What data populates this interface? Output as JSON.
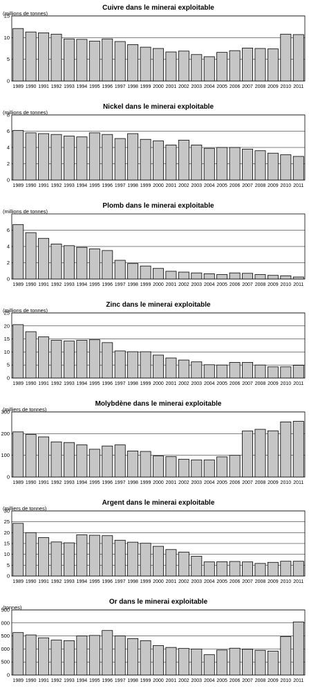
{
  "figure": {
    "years": [
      "1989",
      "1990",
      "1991",
      "1992",
      "1993",
      "1994",
      "1995",
      "1996",
      "1997",
      "1998",
      "1999",
      "2000",
      "2001",
      "2002",
      "2003",
      "2004",
      "2005",
      "2006",
      "2007",
      "2008",
      "2009",
      "2010",
      "2011"
    ]
  },
  "chart_data": [
    {
      "type": "bar",
      "title": "Cuivre dans le minerai exploitable",
      "unit": "(millions de tonnes)",
      "categories": [
        "1989",
        "1990",
        "1991",
        "1992",
        "1993",
        "1994",
        "1995",
        "1996",
        "1997",
        "1998",
        "1999",
        "2000",
        "2001",
        "2002",
        "2003",
        "2004",
        "2005",
        "2006",
        "2007",
        "2008",
        "2009",
        "2010",
        "2011"
      ],
      "values": [
        12.1,
        11.3,
        11.1,
        10.8,
        9.7,
        9.6,
        9.2,
        9.7,
        9.1,
        8.4,
        7.8,
        7.5,
        6.7,
        6.9,
        6.1,
        5.6,
        6.6,
        7.0,
        7.6,
        7.5,
        7.4,
        10.8,
        10.7
      ],
      "ylim": [
        0,
        15
      ],
      "yticks": [
        0,
        5,
        10,
        15
      ],
      "ytick_labels": [
        "0",
        "5",
        "10",
        "15"
      ],
      "grid": true,
      "legend": "none"
    },
    {
      "type": "bar",
      "title": "Nickel dans le minerai exploitable",
      "unit": "(millions de tonnes)",
      "categories": [
        "1989",
        "1990",
        "1991",
        "1992",
        "1993",
        "1994",
        "1995",
        "1996",
        "1997",
        "1998",
        "1999",
        "2000",
        "2001",
        "2002",
        "2003",
        "2004",
        "2005",
        "2006",
        "2007",
        "2008",
        "2009",
        "2010",
        "2011"
      ],
      "values": [
        6.1,
        5.8,
        5.7,
        5.6,
        5.4,
        5.3,
        5.8,
        5.6,
        5.1,
        5.7,
        5.0,
        4.8,
        4.3,
        4.9,
        4.3,
        3.9,
        4.0,
        4.0,
        3.8,
        3.6,
        3.3,
        3.1,
        2.9
      ],
      "ylim": [
        0,
        8
      ],
      "yticks": [
        0,
        2,
        4,
        6,
        8
      ],
      "ytick_labels": [
        "0",
        "2",
        "4",
        "6",
        "8"
      ],
      "grid": true,
      "legend": "none"
    },
    {
      "type": "bar",
      "title": "Plomb dans le minerai exploitable",
      "unit": "(millions de tonnes)",
      "categories": [
        "1989",
        "1990",
        "1991",
        "1992",
        "1993",
        "1994",
        "1995",
        "1996",
        "1997",
        "1998",
        "1999",
        "2000",
        "2001",
        "2002",
        "2003",
        "2004",
        "2005",
        "2006",
        "2007",
        "2008",
        "2009",
        "2010",
        "2011"
      ],
      "values": [
        6.7,
        5.7,
        5.0,
        4.3,
        4.1,
        3.9,
        3.7,
        3.5,
        2.3,
        1.9,
        1.6,
        1.3,
        0.95,
        0.85,
        0.75,
        0.65,
        0.55,
        0.75,
        0.7,
        0.55,
        0.45,
        0.4,
        0.25
      ],
      "ylim": [
        0,
        8
      ],
      "yticks": [
        0,
        2,
        4,
        6
      ],
      "ytick_labels": [
        "0",
        "2",
        "4",
        "6"
      ],
      "grid": true,
      "legend": "none"
    },
    {
      "type": "bar",
      "title": "Zinc dans le minerai exploitable",
      "unit": "(millions de tonnes)",
      "categories": [
        "1989",
        "1990",
        "1991",
        "1992",
        "1993",
        "1994",
        "1995",
        "1996",
        "1997",
        "1998",
        "1999",
        "2000",
        "2001",
        "2002",
        "2003",
        "2004",
        "2005",
        "2006",
        "2007",
        "2008",
        "2009",
        "2010",
        "2011"
      ],
      "values": [
        20.5,
        17.8,
        15.8,
        14.5,
        14.2,
        14.5,
        14.7,
        13.6,
        10.4,
        10.1,
        10.1,
        8.8,
        7.7,
        6.9,
        6.2,
        5.1,
        5.0,
        6.0,
        6.0,
        5.0,
        4.3,
        4.3,
        4.9
      ],
      "ylim": [
        0,
        25
      ],
      "yticks": [
        0,
        5,
        10,
        15,
        20,
        25
      ],
      "ytick_labels": [
        "0",
        "5",
        "10",
        "15",
        "20",
        "25"
      ],
      "grid": true,
      "legend": "none"
    },
    {
      "type": "bar",
      "title": "Molybdène dans le minerai exploitable",
      "unit": "(milliers de tonnes)",
      "categories": [
        "1989",
        "1990",
        "1991",
        "1992",
        "1993",
        "1994",
        "1995",
        "1996",
        "1997",
        "1998",
        "1999",
        "2000",
        "2001",
        "2002",
        "2003",
        "2004",
        "2005",
        "2006",
        "2007",
        "2008",
        "2009",
        "2010",
        "2011"
      ],
      "values": [
        208,
        196,
        185,
        162,
        159,
        148,
        128,
        143,
        148,
        120,
        118,
        97,
        94,
        82,
        79,
        79,
        93,
        100,
        212,
        220,
        213,
        254,
        257
      ],
      "ylim": [
        0,
        300
      ],
      "yticks": [
        0,
        100,
        200,
        300
      ],
      "ytick_labels": [
        "0",
        "100",
        "200",
        "300"
      ],
      "grid": true,
      "legend": "none"
    },
    {
      "type": "bar",
      "title": "Argent dans le minerai exploitable",
      "unit": "(milliers de tonnes)",
      "categories": [
        "1989",
        "1990",
        "1991",
        "1992",
        "1993",
        "1994",
        "1995",
        "1996",
        "1997",
        "1998",
        "1999",
        "2000",
        "2001",
        "2002",
        "2003",
        "2004",
        "2005",
        "2006",
        "2007",
        "2008",
        "2009",
        "2010",
        "2011"
      ],
      "values": [
        24.3,
        20.0,
        17.7,
        15.7,
        15.3,
        19.0,
        18.8,
        18.6,
        16.5,
        15.6,
        15.1,
        13.7,
        12.2,
        11.0,
        9.1,
        6.5,
        6.6,
        6.7,
        6.5,
        5.8,
        6.3,
        6.8,
        6.8
      ],
      "ylim": [
        0,
        30
      ],
      "yticks": [
        0,
        5,
        10,
        15,
        20,
        25,
        30
      ],
      "ytick_labels": [
        "0",
        "5",
        "10",
        "15",
        "20",
        "25",
        "30"
      ],
      "grid": true,
      "legend": "none"
    },
    {
      "type": "bar",
      "title": "Or dans le minerai exploitable",
      "unit": "(tonnes)",
      "categories": [
        "1989",
        "1990",
        "1991",
        "1992",
        "1993",
        "1994",
        "1995",
        "1996",
        "1997",
        "1998",
        "1999",
        "2000",
        "2001",
        "2002",
        "2003",
        "2004",
        "2005",
        "2006",
        "2007",
        "2008",
        "2009",
        "2010",
        "2011"
      ],
      "values": [
        1630,
        1540,
        1430,
        1340,
        1320,
        1500,
        1520,
        1710,
        1500,
        1400,
        1320,
        1130,
        1060,
        1020,
        1000,
        780,
        960,
        1030,
        990,
        950,
        920,
        1480,
        2040
      ],
      "ylim": [
        0,
        2500
      ],
      "yticks": [
        0,
        500,
        1000,
        1500,
        2000,
        2500
      ],
      "ytick_labels": [
        "0",
        "500",
        "1 000",
        "1 500",
        "2 000",
        "2 500"
      ],
      "grid": true,
      "legend": "none"
    }
  ]
}
